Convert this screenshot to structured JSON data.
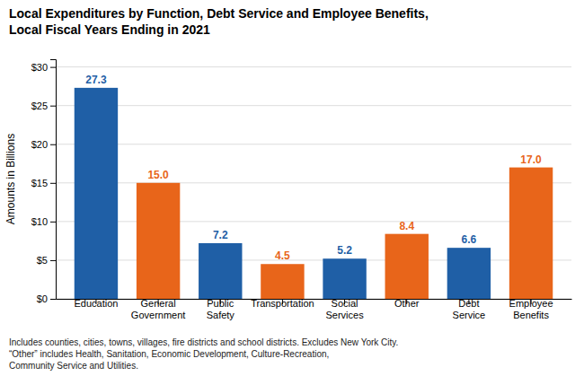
{
  "chart_data": {
    "type": "bar",
    "title": "Local Expenditures by Function, Debt Service and Employee Benefits,\nLocal Fiscal Years Ending in 2021",
    "categories": [
      "Education",
      "General\nGovernment",
      "Public\nSafety",
      "Transportation",
      "Social\nServices",
      "Other",
      "Debt\nService",
      "Employee\nBenefits"
    ],
    "values": [
      27.3,
      15.0,
      7.2,
      4.5,
      5.2,
      8.4,
      6.6,
      17.0
    ],
    "value_labels": [
      "27.3",
      "15.0",
      "7.2",
      "4.5",
      "5.2",
      "8.4",
      "6.6",
      "17.0"
    ],
    "colors": [
      "#1F5FA6",
      "#E8651A",
      "#1F5FA6",
      "#E8651A",
      "#1F5FA6",
      "#E8651A",
      "#1F5FA6",
      "#E8651A"
    ],
    "ylabel": "Amounts in Billions",
    "ylim": [
      0,
      31
    ],
    "yticks": [
      {
        "value": 0,
        "label": "$0"
      },
      {
        "value": 5,
        "label": "$5"
      },
      {
        "value": 10,
        "label": "$10"
      },
      {
        "value": 15,
        "label": "$15"
      },
      {
        "value": 20,
        "label": "$20"
      },
      {
        "value": 25,
        "label": "$25"
      },
      {
        "value": 30,
        "label": "$30"
      }
    ],
    "grid": true,
    "data_labels": true,
    "footnote": "Includes counties, cities, towns, villages, fire districts and school districts. Excludes New York City.\n“Other” includes Health, Sanitation, Economic Development, Culture-Recreation,\nCommunity Service and Utilities."
  }
}
